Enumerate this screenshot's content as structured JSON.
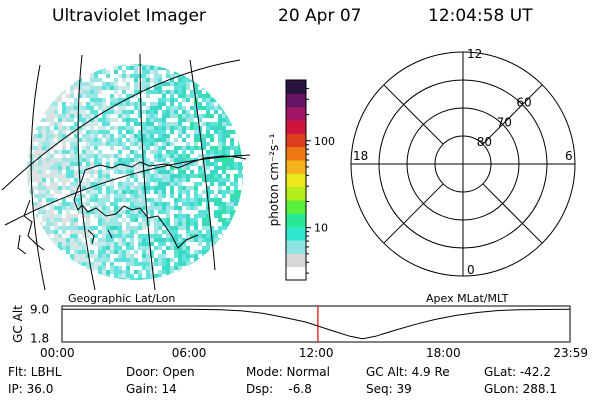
{
  "header": {
    "title": "Ultraviolet Imager",
    "date": "20 Apr 07",
    "time": "12:04:58 UT"
  },
  "image_panel": {
    "label": "Geographic Lat/Lon"
  },
  "colorbar": {
    "unit_label": "photon cm⁻²s⁻¹",
    "ticks": [
      {
        "value": 10,
        "label": "10"
      },
      {
        "value": 100,
        "label": "100"
      }
    ],
    "range": [
      2.5,
      500
    ],
    "scale": "log",
    "colors": [
      "#ffffff",
      "#d8d8d8",
      "#8ee4e4",
      "#2ee8d0",
      "#28e896",
      "#5af03c",
      "#b4ec1e",
      "#ece81e",
      "#f4b41e",
      "#f07814",
      "#e03c1e",
      "#cc143c",
      "#a01464",
      "#641464",
      "#28143c"
    ]
  },
  "polar_plot": {
    "label": "Apex MLat/MLT",
    "mlt_labels": [
      {
        "mlt": 12,
        "label": "12"
      },
      {
        "mlt": 18,
        "label": "18"
      },
      {
        "mlt": 6,
        "label": "6"
      },
      {
        "mlt": 0,
        "label": "0"
      }
    ],
    "lat_labels": [
      {
        "lat": 60,
        "label": "60"
      },
      {
        "lat": 70,
        "label": "70"
      },
      {
        "lat": 80,
        "label": "80"
      }
    ],
    "lat_rings": [
      50,
      60,
      70,
      80
    ]
  },
  "altitude_plot": {
    "ylabel": "GC Alt",
    "yticks": [
      {
        "value": 9.0,
        "label": "9.0"
      },
      {
        "value": 1.8,
        "label": "1.8"
      }
    ],
    "ylim": [
      1.0,
      9.8
    ],
    "xticks": [
      {
        "hour": 0,
        "label": "00:00"
      },
      {
        "hour": 6,
        "label": "06:00"
      },
      {
        "hour": 12,
        "label": "12:00"
      },
      {
        "hour": 18,
        "label": "18:00"
      },
      {
        "hour": 23.98,
        "label": "23:59"
      }
    ],
    "xlim": [
      0,
      23.98
    ],
    "current_hour": 12.08,
    "orbit": [
      {
        "hour": 0.0,
        "alt": 9.0
      },
      {
        "hour": 2.0,
        "alt": 9.0
      },
      {
        "hour": 4.0,
        "alt": 9.0
      },
      {
        "hour": 6.0,
        "alt": 9.0
      },
      {
        "hour": 7.5,
        "alt": 8.9
      },
      {
        "hour": 8.5,
        "alt": 8.6
      },
      {
        "hour": 9.5,
        "alt": 8.0
      },
      {
        "hour": 10.5,
        "alt": 7.0
      },
      {
        "hour": 11.5,
        "alt": 5.9
      },
      {
        "hour": 12.08,
        "alt": 4.9
      },
      {
        "hour": 12.8,
        "alt": 3.7
      },
      {
        "hour": 13.6,
        "alt": 2.4
      },
      {
        "hour": 14.2,
        "alt": 1.8
      },
      {
        "hour": 14.8,
        "alt": 2.4
      },
      {
        "hour": 15.6,
        "alt": 3.7
      },
      {
        "hour": 16.6,
        "alt": 5.2
      },
      {
        "hour": 17.6,
        "alt": 6.5
      },
      {
        "hour": 18.6,
        "alt": 7.5
      },
      {
        "hour": 19.6,
        "alt": 8.2
      },
      {
        "hour": 20.6,
        "alt": 8.7
      },
      {
        "hour": 21.6,
        "alt": 8.9
      },
      {
        "hour": 23.98,
        "alt": 9.0
      }
    ]
  },
  "info": {
    "filter": "Flt: LBHL",
    "door": "Door: Open",
    "mode": "Mode: Normal",
    "gc_alt": "GC Alt: 4.9 Re",
    "glat": "GLat: -42.2",
    "ip": "IP: 36.0",
    "gain": "Gain: 14",
    "dsp": "Dsp:    -6.8",
    "seq": "Seq: 39",
    "glon": "GLon: 288.1"
  }
}
